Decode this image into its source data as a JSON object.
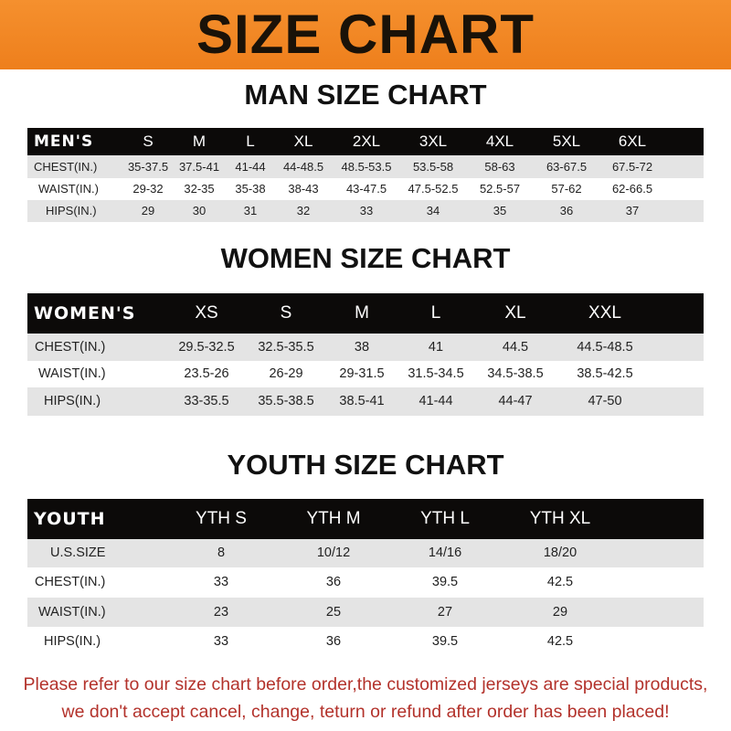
{
  "banner_title": "SIZE CHART",
  "colors": {
    "banner": "#f08a25",
    "header_row": "#0c0a09",
    "alt_row": "#e4e4e4",
    "note": "#b3322b"
  },
  "men": {
    "title": "MAN SIZE CHART",
    "header": [
      "MEN'S",
      "S",
      "M",
      "L",
      "XL",
      "2XL",
      "3XL",
      "4XL",
      "5XL",
      "6XL"
    ],
    "rows": [
      [
        "CHEST(IN.)",
        "35-37.5",
        "37.5-41",
        "41-44",
        "44-48.5",
        "48.5-53.5",
        "53.5-58",
        "58-63",
        "63-67.5",
        "67.5-72"
      ],
      [
        "WAIST(IN.)",
        "29-32",
        "32-35",
        "35-38",
        "38-43",
        "43-47.5",
        "47.5-52.5",
        "52.5-57",
        "57-62",
        "62-66.5"
      ],
      [
        "HIPS(IN.)",
        "29",
        "30",
        "31",
        "32",
        "33",
        "34",
        "35",
        "36",
        "37"
      ]
    ]
  },
  "women": {
    "title": "WOMEN SIZE CHART",
    "header": [
      "WOMEN'S",
      "XS",
      "S",
      "M",
      "L",
      "XL",
      "XXL"
    ],
    "rows": [
      [
        "CHEST(IN.)",
        "29.5-32.5",
        "32.5-35.5",
        "38",
        "41",
        "44.5",
        "44.5-48.5"
      ],
      [
        "WAIST(IN.)",
        "23.5-26",
        "26-29",
        "29-31.5",
        "31.5-34.5",
        "34.5-38.5",
        "38.5-42.5"
      ],
      [
        "HIPS(IN.)",
        "33-35.5",
        "35.5-38.5",
        "38.5-41",
        "41-44",
        "44-47",
        "47-50"
      ]
    ]
  },
  "youth": {
    "title": "YOUTH SIZE CHART",
    "header": [
      "YOUTH",
      "YTH S",
      "YTH M",
      "YTH L",
      "YTH XL"
    ],
    "rows": [
      [
        "U.S.SIZE",
        "8",
        "10/12",
        "14/16",
        "18/20"
      ],
      [
        "CHEST(IN.)",
        "33",
        "36",
        "39.5",
        "42.5"
      ],
      [
        "WAIST(IN.)",
        "23",
        "25",
        "27",
        "29"
      ],
      [
        "HIPS(IN.)",
        "33",
        "36",
        "39.5",
        "42.5"
      ]
    ]
  },
  "note": {
    "line1": "Please refer to our size chart before order,the customized jerseys are special products,",
    "line2": "we don't accept cancel, change, teturn or refund after order has been placed!"
  }
}
